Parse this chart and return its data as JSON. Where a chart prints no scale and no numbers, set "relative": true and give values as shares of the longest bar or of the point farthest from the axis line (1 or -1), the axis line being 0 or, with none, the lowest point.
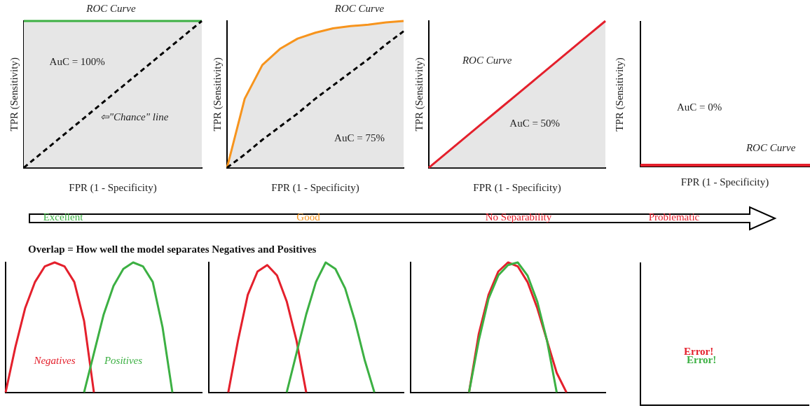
{
  "chart_data": [
    {
      "type": "line",
      "xlabel": "FPR (1 - Specificity)",
      "ylabel": "TPR (Sensitivity)",
      "relative": true,
      "grid": false,
      "legend": false,
      "annotations": [
        "ROC Curve",
        "AuC = 100%",
        "⇦\"Chance\" line"
      ],
      "categories": [
        null,
        null,
        null,
        null,
        null,
        null,
        null,
        null,
        null,
        null,
        null
      ],
      "series": [
        {
          "color": "#3cb043",
          "values": [
            1,
            1,
            1,
            1,
            1,
            1,
            1,
            1,
            1,
            1,
            1
          ]
        },
        {
          "color": "#000000",
          "line_style": "dashed",
          "values": [
            0,
            0.1,
            0.2,
            0.3,
            0.4,
            0.5,
            0.6,
            0.7,
            0.8,
            0.9,
            1
          ]
        }
      ]
    },
    {
      "type": "line",
      "xlabel": "FPR (1 - Specificity)",
      "ylabel": "TPR (Sensitivity)",
      "relative": true,
      "grid": false,
      "legend": false,
      "annotations": [
        "ROC Curve",
        "AuC = 75%"
      ],
      "categories": [
        null,
        null,
        null,
        null,
        null,
        null,
        null,
        null,
        null,
        null,
        null
      ],
      "series": [
        {
          "color": "#f7941d",
          "values": [
            0,
            0.47,
            0.7,
            0.81,
            0.88,
            0.92,
            0.95,
            0.965,
            0.975,
            0.99,
            1
          ]
        },
        {
          "color": "#000000",
          "line_style": "dashed",
          "values": [
            0,
            0.09,
            0.19,
            0.28,
            0.37,
            0.47,
            0.56,
            0.65,
            0.74,
            0.84,
            0.93
          ]
        }
      ]
    },
    {
      "type": "line",
      "xlabel": "FPR (1 - Specificity)",
      "ylabel": "TPR (Sensitivity)",
      "relative": true,
      "grid": false,
      "legend": false,
      "annotations": [
        "ROC Curve",
        "AuC = 50%"
      ],
      "categories": [
        null,
        null,
        null,
        null,
        null,
        null,
        null,
        null,
        null,
        null,
        null
      ],
      "series": [
        {
          "color": "#e4202c",
          "values": [
            0,
            0.1,
            0.2,
            0.3,
            0.4,
            0.5,
            0.6,
            0.7,
            0.8,
            0.9,
            1
          ]
        }
      ]
    },
    {
      "type": "other",
      "xlabel": "FPR (1 - Specificity)",
      "ylabel": "TPR (Sensitivity)",
      "annotations": [
        "AuC = 0%",
        "ROC Curve"
      ]
    },
    {
      "type": "other",
      "title": "Overlap = How well the model separates Negatives and Positives",
      "annotations": [
        "Excellent",
        "Good",
        "No Separability",
        "Problematic"
      ]
    },
    {
      "type": "line",
      "relative": true,
      "grid": false,
      "legend": false,
      "annotations": [
        "Negatives",
        "Positives"
      ],
      "categories": [
        null,
        null,
        null,
        null,
        null,
        null,
        null,
        null,
        null,
        null,
        null,
        null,
        null,
        null,
        null,
        null,
        null,
        null,
        null,
        null,
        null
      ],
      "series": [
        {
          "color": "#e4202c",
          "values": [
            0,
            0.35,
            0.65,
            0.85,
            0.97,
            1,
            0.97,
            0.85,
            0.55,
            0,
            null,
            null,
            null,
            null,
            null,
            null,
            null,
            null,
            null,
            null,
            null
          ]
        },
        {
          "color": "#3cb043",
          "values": [
            null,
            null,
            null,
            null,
            null,
            null,
            null,
            null,
            0,
            0.3,
            0.6,
            0.82,
            0.95,
            1,
            0.97,
            0.85,
            0.5,
            0,
            null,
            null,
            null
          ]
        }
      ]
    },
    {
      "type": "line",
      "relative": true,
      "grid": false,
      "legend": false,
      "categories": [
        null,
        null,
        null,
        null,
        null,
        null,
        null,
        null,
        null,
        null,
        null,
        null,
        null,
        null,
        null,
        null,
        null,
        null,
        null,
        null,
        null
      ],
      "series": [
        {
          "color": "#e4202c",
          "values": [
            null,
            null,
            0,
            0.4,
            0.75,
            0.93,
            0.98,
            0.9,
            0.7,
            0.4,
            0,
            null,
            null,
            null,
            null,
            null,
            null,
            null,
            null,
            null,
            null
          ]
        },
        {
          "color": "#3cb043",
          "values": [
            null,
            null,
            null,
            null,
            null,
            null,
            null,
            null,
            0,
            0.3,
            0.6,
            0.85,
            1,
            0.95,
            0.8,
            0.55,
            0.25,
            0,
            null,
            null,
            null
          ]
        }
      ]
    },
    {
      "type": "line",
      "relative": true,
      "grid": false,
      "legend": false,
      "categories": [
        null,
        null,
        null,
        null,
        null,
        null,
        null,
        null,
        null,
        null,
        null,
        null,
        null,
        null,
        null,
        null,
        null,
        null,
        null,
        null,
        null
      ],
      "series": [
        {
          "color": "#e4202c",
          "values": [
            null,
            null,
            null,
            null,
            null,
            null,
            0,
            0.45,
            0.75,
            0.93,
            1,
            0.97,
            0.85,
            0.65,
            0.4,
            0.15,
            0,
            null,
            null,
            null,
            null
          ]
        },
        {
          "color": "#3cb043",
          "values": [
            null,
            null,
            null,
            null,
            null,
            null,
            0,
            0.4,
            0.72,
            0.9,
            0.98,
            1,
            0.9,
            0.7,
            0.4,
            0,
            null,
            null,
            null,
            null,
            null
          ]
        }
      ]
    },
    {
      "type": "other",
      "annotations": [
        "Error!",
        "Error!"
      ]
    }
  ]
}
